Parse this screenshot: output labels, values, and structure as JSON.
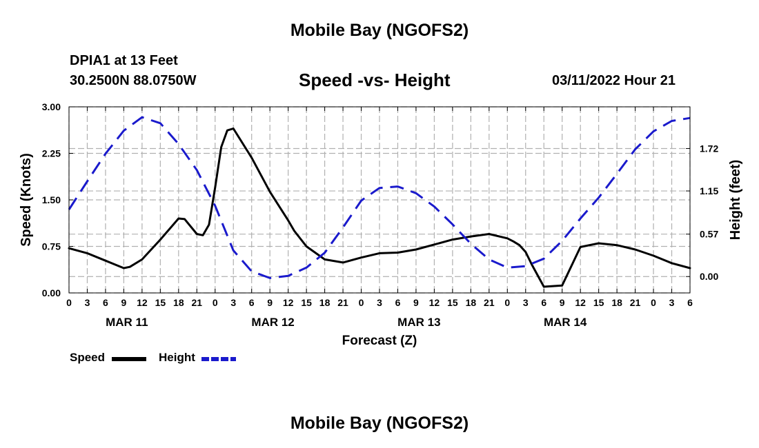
{
  "header": {
    "title": "Mobile Bay (NGOFS2)",
    "station": "DPIA1 at 13 Feet",
    "coords": "30.2500N  88.0750W",
    "subtitle": "Speed -vs- Height",
    "runtime": "03/11/2022 Hour 21"
  },
  "footer": {
    "title": "Mobile Bay (NGOFS2)"
  },
  "legend": {
    "speed_label": "Speed",
    "height_label": "Height"
  },
  "colors": {
    "speed": "#000000",
    "height": "#1a1acc",
    "grid": "#b0b0b0"
  },
  "chart_data": {
    "type": "line",
    "title": "Speed -vs- Height",
    "xlabel": "Forecast (Z)",
    "ylabel": "Speed (Knots)",
    "y2label": "Height (feet)",
    "x_unit": "forecast hours from MAR 11 00Z",
    "xlim": [
      0,
      102
    ],
    "ylim": [
      0,
      3.0
    ],
    "y2lim": [
      -0.22,
      2.28
    ],
    "x_ticks": [
      0,
      3,
      6,
      9,
      12,
      15,
      18,
      21,
      24,
      27,
      30,
      33,
      36,
      39,
      42,
      45,
      48,
      51,
      54,
      57,
      60,
      63,
      66,
      69,
      72,
      75,
      78,
      81,
      84,
      87,
      90,
      93,
      96,
      99,
      102
    ],
    "x_tick_labels": [
      "0",
      "3",
      "6",
      "9",
      "12",
      "15",
      "18",
      "21",
      "0",
      "3",
      "6",
      "9",
      "12",
      "15",
      "18",
      "21",
      "0",
      "3",
      "6",
      "9",
      "12",
      "15",
      "18",
      "21",
      "0",
      "3",
      "6",
      "9",
      "12",
      "15",
      "18",
      "21",
      "0",
      "3",
      "6"
    ],
    "date_labels": [
      {
        "x": 9.5,
        "label": "MAR 11"
      },
      {
        "x": 33.5,
        "label": "MAR 12"
      },
      {
        "x": 57.5,
        "label": "MAR 13"
      },
      {
        "x": 81.5,
        "label": "MAR 14"
      }
    ],
    "y_ticks": [
      0.0,
      0.75,
      1.5,
      2.25,
      3.0
    ],
    "y_tick_labels": [
      "0.00",
      "0.75",
      "1.50",
      "2.25",
      "3.00"
    ],
    "y2_ticks": [
      0.0,
      0.57,
      1.15,
      1.72
    ],
    "y2_tick_labels": [
      "0.00",
      "0.57",
      "1.15",
      "1.72"
    ],
    "grid": true,
    "legend_position": "bottom-left",
    "series": [
      {
        "name": "Speed",
        "axis": "left",
        "style": "solid",
        "x": [
          0,
          3,
          6,
          9,
          10,
          12,
          15,
          18,
          19,
          21,
          22,
          23,
          24,
          25,
          26,
          27,
          30,
          33,
          36,
          37,
          39,
          42,
          45,
          48,
          51,
          54,
          57,
          60,
          63,
          66,
          69,
          72,
          73,
          74,
          75,
          76,
          78,
          81,
          84,
          87,
          90,
          93,
          96,
          99,
          102
        ],
        "y": [
          0.72,
          0.64,
          0.52,
          0.4,
          0.42,
          0.54,
          0.86,
          1.2,
          1.19,
          0.95,
          0.93,
          1.1,
          1.7,
          2.35,
          2.62,
          2.65,
          2.18,
          1.63,
          1.17,
          1.0,
          0.75,
          0.54,
          0.49,
          0.57,
          0.64,
          0.65,
          0.7,
          0.78,
          0.86,
          0.91,
          0.95,
          0.88,
          0.83,
          0.77,
          0.66,
          0.46,
          0.1,
          0.12,
          0.74,
          0.8,
          0.77,
          0.7,
          0.6,
          0.48,
          0.4
        ]
      },
      {
        "name": "Height",
        "axis": "right",
        "style": "dashed",
        "x": [
          0,
          3,
          6,
          9,
          12,
          15,
          18,
          21,
          24,
          27,
          30,
          33,
          36,
          39,
          42,
          45,
          48,
          51,
          54,
          57,
          60,
          63,
          66,
          69,
          72,
          75,
          78,
          81,
          84,
          87,
          90,
          93,
          96,
          99,
          102
        ],
        "y": [
          0.9,
          1.28,
          1.65,
          1.96,
          2.14,
          2.06,
          1.78,
          1.43,
          0.95,
          0.35,
          0.07,
          -0.02,
          0.01,
          0.12,
          0.32,
          0.66,
          1.02,
          1.19,
          1.21,
          1.12,
          0.94,
          0.7,
          0.44,
          0.23,
          0.12,
          0.14,
          0.24,
          0.48,
          0.78,
          1.06,
          1.38,
          1.71,
          1.95,
          2.09,
          2.13
        ]
      }
    ]
  }
}
